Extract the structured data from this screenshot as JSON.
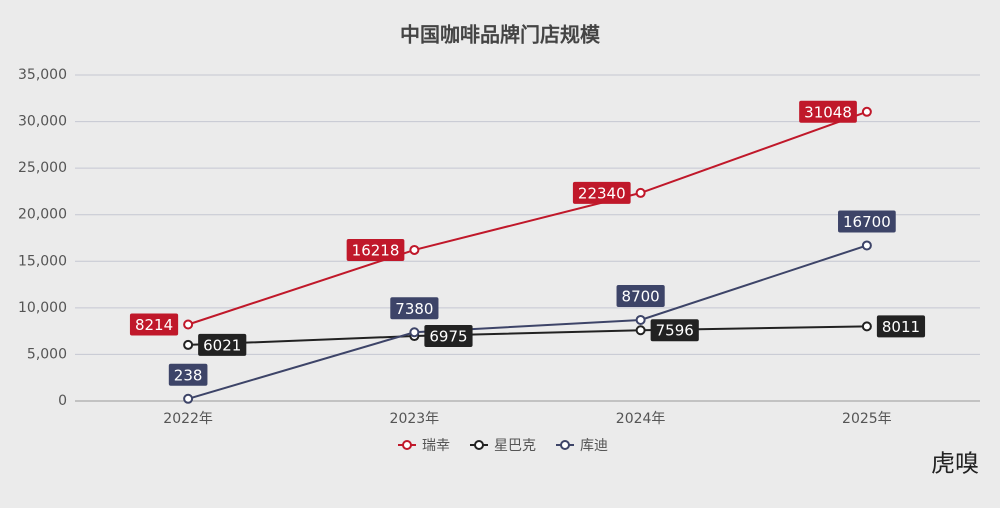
{
  "chart_data": {
    "type": "line",
    "title": "中国咖啡品牌门店规模",
    "categories": [
      "2022年",
      "2023年",
      "2024年",
      "2025年"
    ],
    "series": [
      {
        "name": "瑞幸",
        "color": "#c0182a",
        "values": [
          8214,
          16218,
          22340,
          31048
        ],
        "label_side": "left"
      },
      {
        "name": "星巴克",
        "color": "#222222",
        "values": [
          6021,
          6975,
          7596,
          8011
        ],
        "label_side": "right"
      },
      {
        "name": "库迪",
        "color": "#3d4468",
        "values": [
          238,
          7380,
          8700,
          16700
        ],
        "label_side": "top"
      }
    ],
    "ylim": [
      0,
      35000
    ],
    "yticks": [
      0,
      {
        "value": 5000,
        "label": "5,000"
      },
      {
        "value": 10000,
        "label": "10,000"
      },
      {
        "value": 15000,
        "label": "15,000"
      },
      {
        "value": 20000,
        "label": "20,000"
      },
      {
        "value": 25000,
        "label": "25,000"
      },
      {
        "value": 30000,
        "label": "30,000"
      },
      {
        "value": 35000,
        "label": "35,000"
      }
    ],
    "grid": true,
    "legend": "bottom",
    "watermark": "虎嗅"
  }
}
